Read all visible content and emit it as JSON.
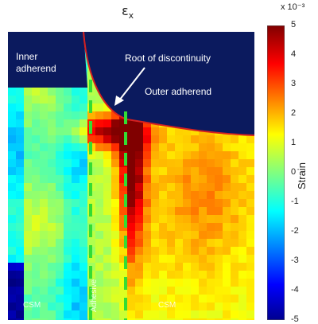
{
  "chart_data": {
    "type": "heatmap",
    "title": "ε",
    "title_subscript": "x",
    "colorbar": {
      "label": "Strain",
      "exponent": "x 10⁻³",
      "min": -5,
      "max": 5,
      "ticks": [
        "5",
        "4",
        "3",
        "2",
        "1",
        "0",
        "-1",
        "-2",
        "-3",
        "-4",
        "-5"
      ],
      "colormap": "jet"
    },
    "annotations": {
      "inner_adherend": "Inner\nadherend",
      "root": "Root of discontinuity",
      "outer_adherend": "Outer adherend",
      "csm_left": "CSM",
      "adhesive": "Adhesive",
      "csm_right": "CSM"
    },
    "colors": {
      "adherend": "#0b1a5e",
      "boundary": "#d62020",
      "dashed_lines": "#33dd33"
    }
  }
}
